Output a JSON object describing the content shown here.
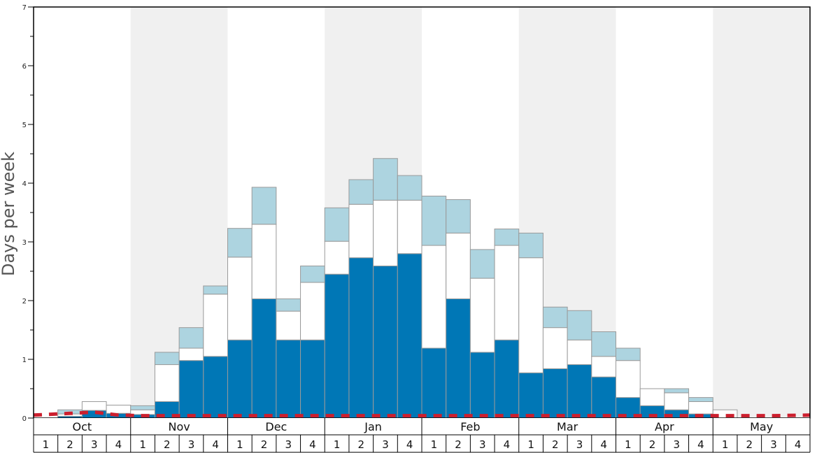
{
  "chart_data": {
    "type": "bar",
    "ylabel": "Days per week",
    "ylim": [
      0,
      7
    ],
    "y_ticks": [
      "0",
      "1",
      "2",
      "3",
      "4",
      "5",
      "6",
      "7"
    ],
    "months": [
      "Oct",
      "Nov",
      "Dec",
      "Jan",
      "Feb",
      "Mar",
      "Apr",
      "May"
    ],
    "weeks": [
      "1",
      "2",
      "3",
      "4"
    ],
    "stacked": true,
    "colors": {
      "series_dark": "#0077b6",
      "series_white": "#ffffff",
      "series_light": "#add4e0",
      "baseline": "#cc1f2e",
      "shade": "#f0f0f0"
    },
    "series": [
      {
        "values": [
          0,
          0.03,
          0.13,
          0.08,
          0.06,
          0.28,
          0.98,
          1.05,
          1.33,
          2.03,
          1.33,
          1.33,
          2.45,
          2.73,
          2.59,
          2.8,
          1.19,
          2.03,
          1.12,
          1.33,
          0.77,
          0.84,
          0.91,
          0.7,
          0.35,
          0.21,
          0.14,
          0.07,
          0,
          0,
          0,
          0
        ]
      },
      {
        "values": [
          0,
          0.04,
          0.15,
          0.14,
          0.08,
          0.63,
          0.21,
          1.06,
          1.41,
          1.27,
          0.49,
          0.98,
          0.56,
          0.91,
          1.12,
          0.91,
          1.75,
          1.12,
          1.26,
          1.61,
          1.96,
          0.7,
          0.42,
          0.35,
          0.63,
          0.29,
          0.29,
          0.21,
          0.14,
          0,
          0,
          0
        ]
      },
      {
        "values": [
          0,
          0.07,
          0,
          0,
          0.07,
          0.21,
          0.35,
          0.14,
          0.49,
          0.63,
          0.21,
          0.28,
          0.57,
          0.42,
          0.71,
          0.42,
          0.84,
          0.57,
          0.49,
          0.28,
          0.42,
          0.35,
          0.5,
          0.42,
          0.21,
          0,
          0.07,
          0.07,
          0,
          0,
          0,
          0
        ]
      }
    ],
    "baseline_line": {
      "style": "dashed",
      "values": [
        0.05,
        0.08,
        0.1,
        0.05,
        0.04,
        0.04,
        0.04,
        0.04,
        0.04,
        0.04,
        0.04,
        0.04,
        0.04,
        0.04,
        0.04,
        0.04,
        0.04,
        0.04,
        0.04,
        0.04,
        0.04,
        0.04,
        0.04,
        0.04,
        0.04,
        0.04,
        0.04,
        0.04,
        0.04,
        0.04,
        0.04,
        0.05
      ]
    },
    "shaded_months": [
      "Nov",
      "Jan",
      "Mar",
      "May"
    ],
    "grid": false
  }
}
